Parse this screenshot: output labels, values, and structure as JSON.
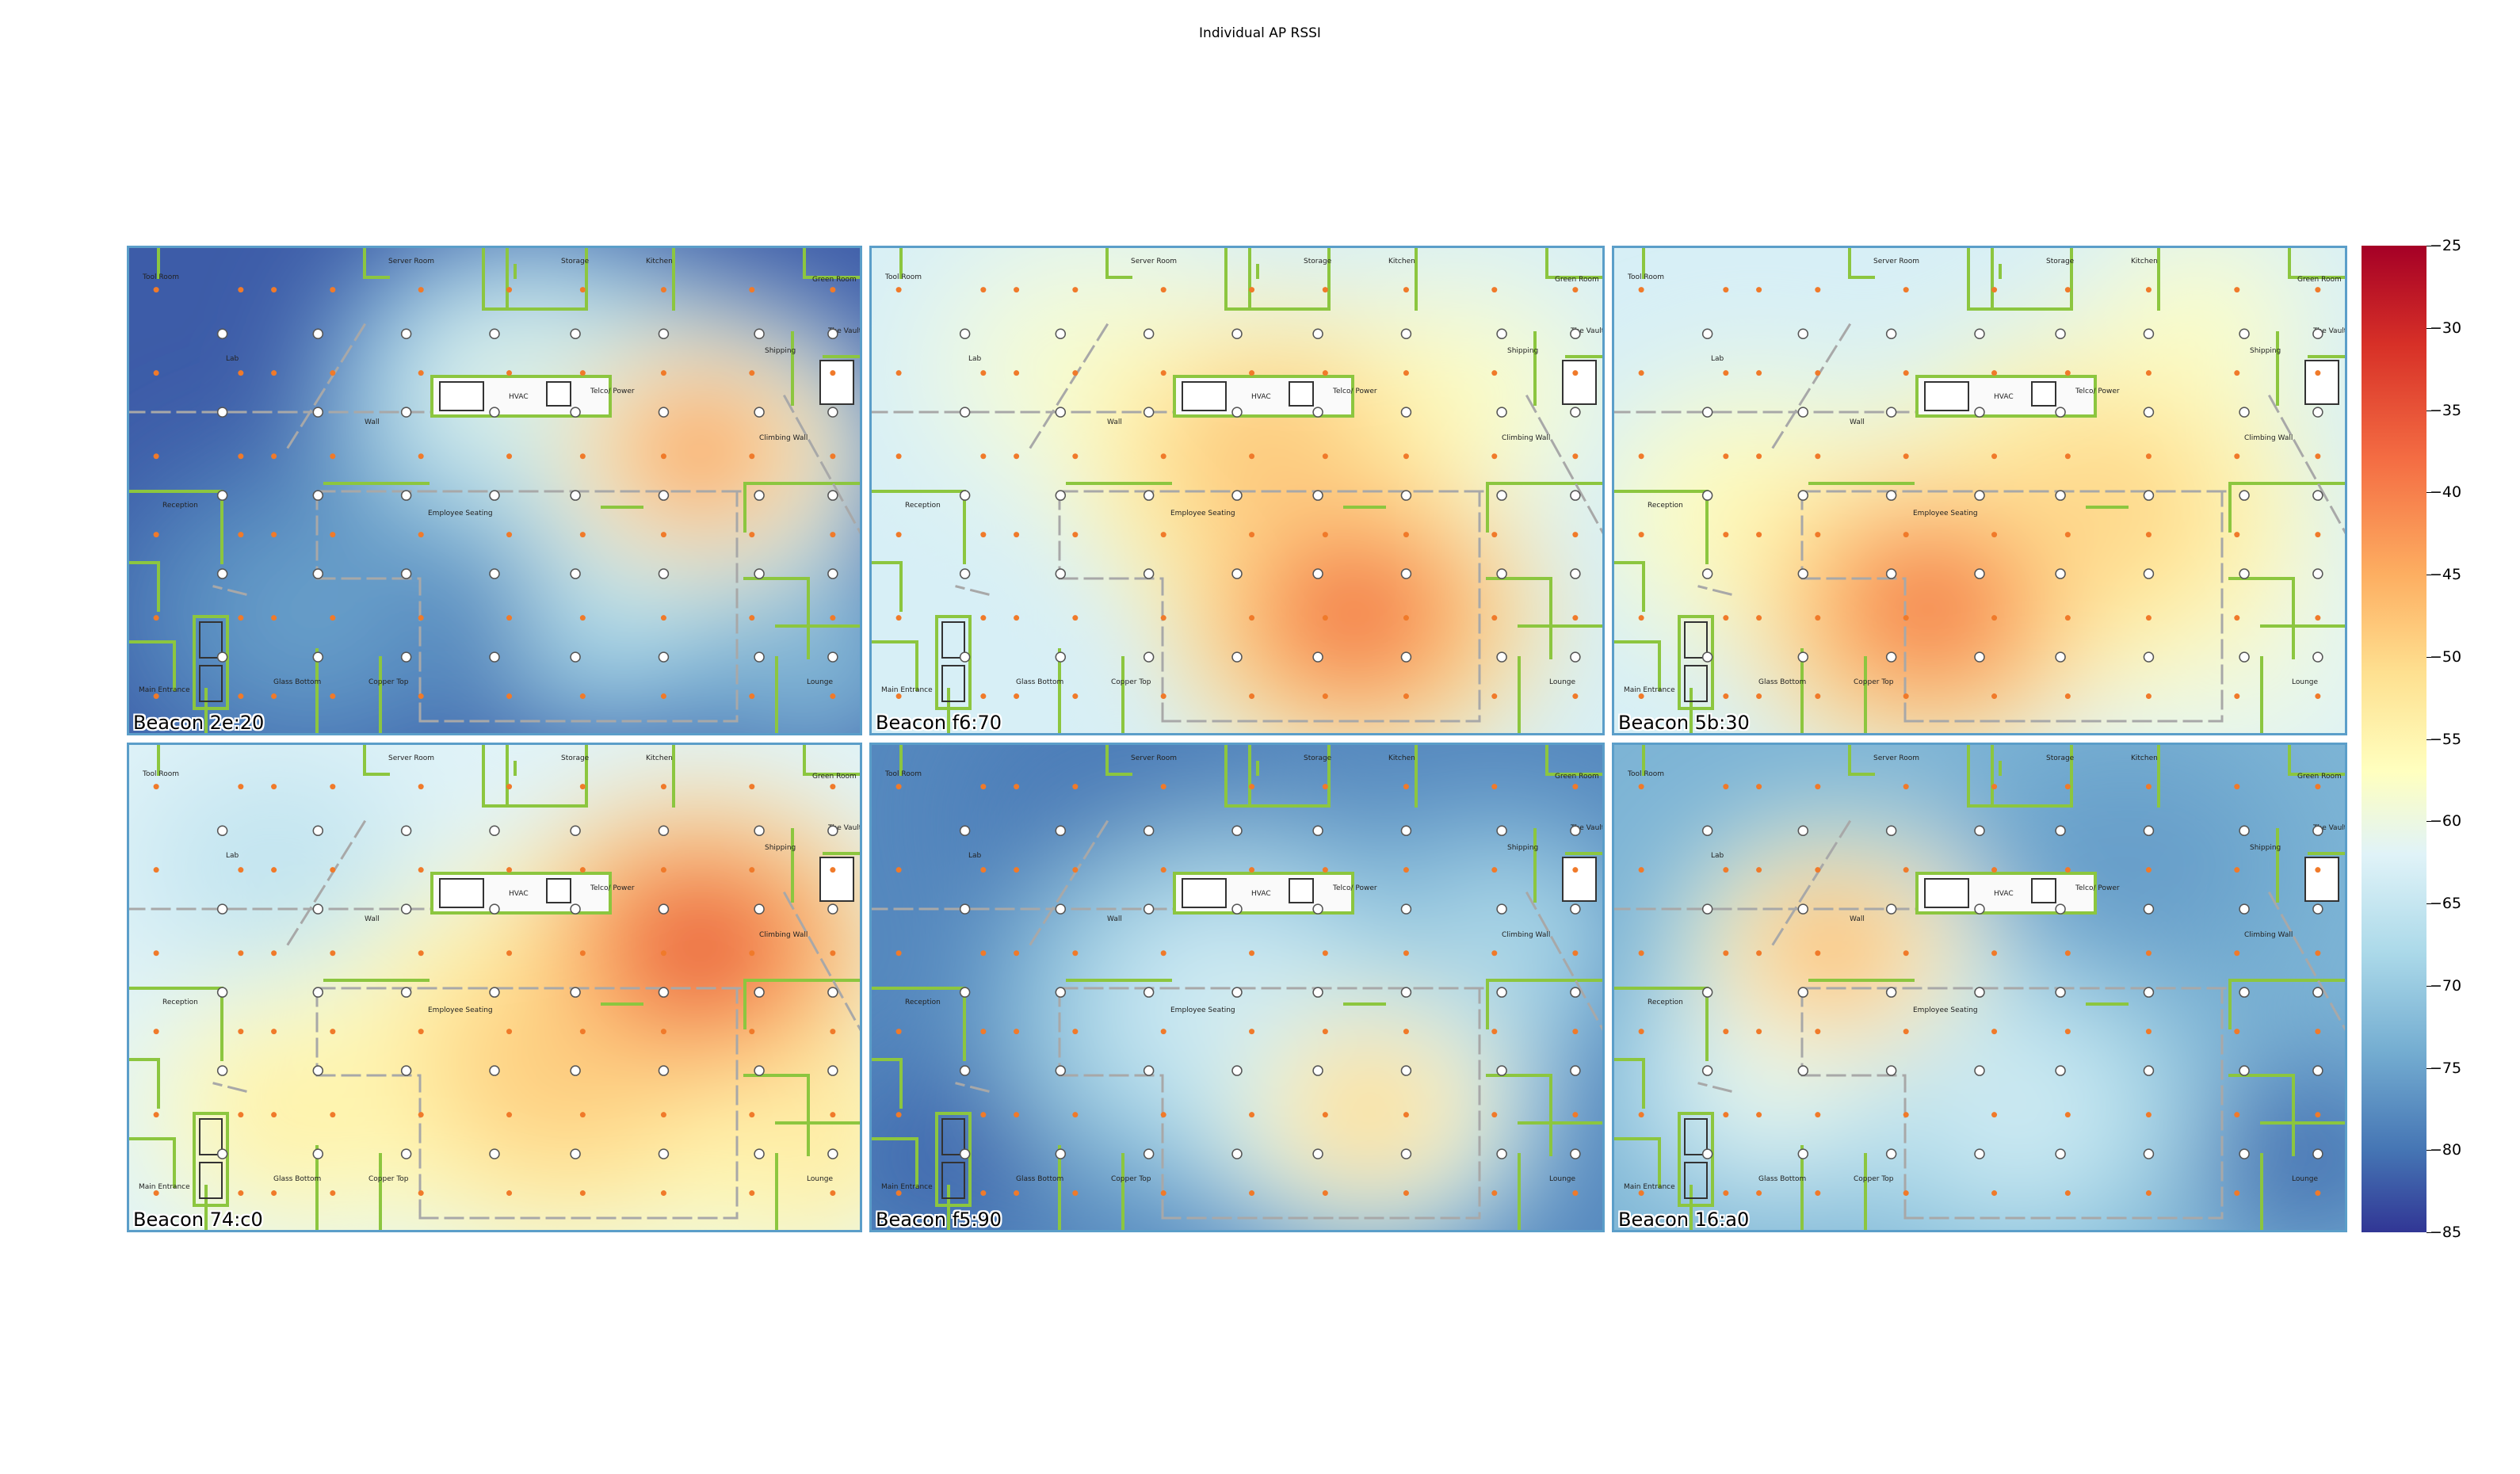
{
  "title": "Individual AP RSSI",
  "chart_data": {
    "type": "heatmap",
    "title": "Individual AP RSSI",
    "colormap": "RdYlBu_r",
    "colorbar": {
      "range": [
        -85,
        -25
      ],
      "ticks": [
        -25,
        -30,
        -35,
        -40,
        -45,
        -50,
        -55,
        -60,
        -65,
        -70,
        -75,
        -80,
        -85
      ]
    },
    "grid": "2x3",
    "panels": [
      {
        "label": "Beacon 2e:20"
      },
      {
        "label": "Beacon f6:70"
      },
      {
        "label": "Beacon 5b:30"
      },
      {
        "label": "Beacon 74:c0"
      },
      {
        "label": "Beacon f5:90"
      },
      {
        "label": "Beacon 16:a0"
      }
    ]
  },
  "floorplan": {
    "rooms": [
      {
        "name": "Tool Room",
        "id": "tool-room"
      },
      {
        "name": "Server Room",
        "id": "server-room"
      },
      {
        "name": "Storage",
        "id": "storage"
      },
      {
        "name": "Kitchen",
        "id": "kitchen"
      },
      {
        "name": "Green Room",
        "id": "green-room"
      },
      {
        "name": "The Vault",
        "id": "the-vault"
      },
      {
        "name": "Shipping",
        "id": "shipping"
      },
      {
        "name": "Lab",
        "id": "lab"
      },
      {
        "name": "HVAC",
        "id": "hvac"
      },
      {
        "name": "Telco/\nPower",
        "id": "telco-power"
      },
      {
        "name": "Climbing Wall",
        "id": "climbing-wall"
      },
      {
        "name": "Reception",
        "id": "reception"
      },
      {
        "name": "Employee Seating",
        "id": "employee-seating"
      },
      {
        "name": "Glass Bottom",
        "id": "glass-bottom"
      },
      {
        "name": "Copper Top",
        "id": "copper-top"
      },
      {
        "name": "Lounge",
        "id": "lounge"
      },
      {
        "name": "Main Entrance",
        "id": "main-entrance"
      },
      {
        "name": "Wall",
        "id": "wall"
      }
    ]
  },
  "colors": {
    "wall": "#8cc63f",
    "dashed": "#a8a8a8",
    "panel_border": "#5b9ec9",
    "sample_point": "#f07a2a"
  }
}
